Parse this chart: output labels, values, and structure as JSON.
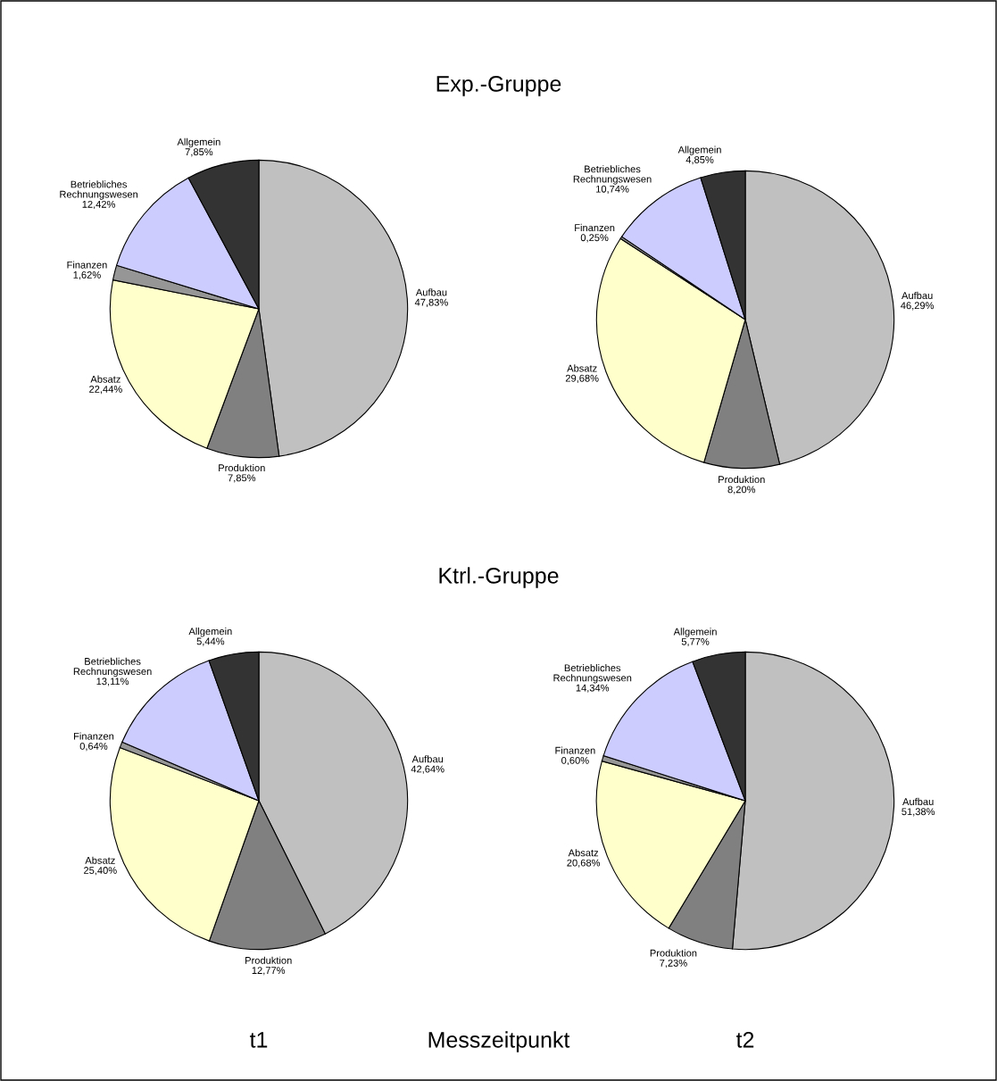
{
  "chart_data": [
    {
      "type": "pie",
      "title": "Exp.-Gruppe",
      "categories": [
        "Aufbau",
        "Produktion",
        "Absatz",
        "Finanzen",
        "Betriebliches\nRechnungswesen",
        "Allgemein"
      ],
      "values": [
        47.83,
        7.85,
        22.44,
        1.62,
        12.42,
        7.85
      ],
      "value_labels": [
        "47,83%",
        "7,85%",
        "22,44%",
        "1,62%",
        "12,42%",
        "7,85%"
      ],
      "colors": [
        "#c0c0c0",
        "#808080",
        "#ffffcc",
        "#969696",
        "#ccccff",
        "#333333"
      ]
    },
    {
      "type": "pie",
      "categories": [
        "Aufbau",
        "Produktion",
        "Absatz",
        "Finanzen",
        "Betriebliches\nRechnungswesen",
        "Allgemein"
      ],
      "values": [
        46.29,
        8.2,
        29.68,
        0.25,
        10.74,
        4.85
      ],
      "value_labels": [
        "46,29%",
        "8,20%",
        "29,68%",
        "0,25%",
        "10,74%",
        "4,85%"
      ],
      "colors": [
        "#c0c0c0",
        "#808080",
        "#ffffcc",
        "#969696",
        "#ccccff",
        "#333333"
      ]
    },
    {
      "type": "pie",
      "title": "Ktrl.-Gruppe",
      "xlabel": "t1",
      "annotations": [
        "Messzeitpunkt"
      ],
      "categories": [
        "Aufbau",
        "Produktion",
        "Absatz",
        "Finanzen",
        "Betriebliches\nRechnungswesen",
        "Allgemein"
      ],
      "values": [
        42.64,
        12.77,
        25.4,
        0.64,
        13.11,
        5.44
      ],
      "value_labels": [
        "42,64%",
        "12,77%",
        "25,40%",
        "0,64%",
        "13,11%",
        "5,44%"
      ],
      "colors": [
        "#c0c0c0",
        "#808080",
        "#ffffcc",
        "#969696",
        "#ccccff",
        "#333333"
      ]
    },
    {
      "type": "pie",
      "xlabel": "t2",
      "categories": [
        "Aufbau",
        "Produktion",
        "Absatz",
        "Finanzen",
        "Betriebliches\nRechnungswesen",
        "Allgemein"
      ],
      "values": [
        51.38,
        7.23,
        20.68,
        0.6,
        14.34,
        5.77
      ],
      "value_labels": [
        "51,38%",
        "7,23%",
        "20,68%",
        "0,60%",
        "14,34%",
        "5,77%"
      ],
      "colors": [
        "#c0c0c0",
        "#808080",
        "#ffffcc",
        "#969696",
        "#ccccff",
        "#333333"
      ]
    }
  ]
}
